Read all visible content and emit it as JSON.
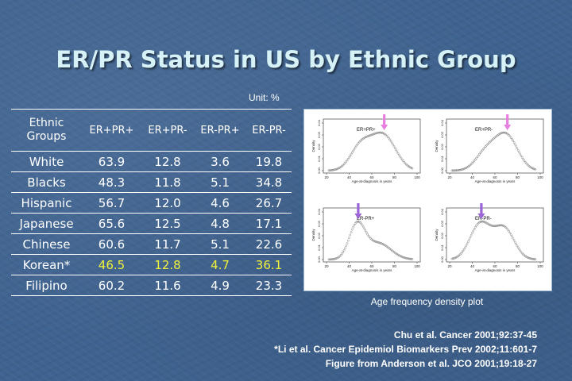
{
  "slide": {
    "title": "ER/PR Status in US by Ethnic Group",
    "unit_note": "Unit: %"
  },
  "table": {
    "group_header": [
      "Ethnic",
      "Groups"
    ],
    "columns": [
      "ER+PR+",
      "ER+PR-",
      "ER-PR+",
      "ER-PR-"
    ],
    "rows": [
      {
        "group": "White",
        "values": [
          "63.9",
          "12.8",
          "3.6",
          "19.8"
        ]
      },
      {
        "group": "Blacks",
        "values": [
          "48.3",
          "11.8",
          "5.1",
          "34.8"
        ]
      },
      {
        "group": "Hispanic",
        "values": [
          "56.7",
          "12.0",
          "4.6",
          "26.7"
        ]
      },
      {
        "group": "Japanese",
        "values": [
          "65.6",
          "12.5",
          "4.8",
          "17.1"
        ]
      },
      {
        "group": "Chinese",
        "values": [
          "60.6",
          "11.7",
          "5.1",
          "22.6"
        ]
      },
      {
        "group": "Korean*",
        "values": [
          "46.5",
          "12.8",
          "4.7",
          "36.1"
        ]
      },
      {
        "group": "Filipino",
        "values": [
          "60.2",
          "11.6",
          "4.9",
          "23.3"
        ]
      }
    ],
    "highlight_row": "Korean*",
    "highlight_color": "#f2f23a"
  },
  "figure": {
    "caption": "Age frequency density plot",
    "x_label": "Age-at-diagnosis in years",
    "y_label": "Density",
    "x_ticks": [
      "20",
      "40",
      "60",
      "80",
      "100"
    ],
    "y_ticks": [
      "0.00",
      "0.01",
      "0.02",
      "0.03",
      "0.04"
    ],
    "arrow_upper_color": "#e77ee0",
    "arrow_lower_color": "#9a63d8",
    "panels": [
      {
        "label": "ER+PR+"
      },
      {
        "label": "ER+PR-"
      },
      {
        "label": "ER-PR+"
      },
      {
        "label": "ER-PR-"
      }
    ]
  },
  "citations": [
    "Chu et al. Cancer 2001;92:37-45",
    "*Li et al. Cancer Epidemiol Biomarkers Prev 2002;11:601-7",
    "Figure from Anderson et al. JCO 2001;19:18-27"
  ]
}
